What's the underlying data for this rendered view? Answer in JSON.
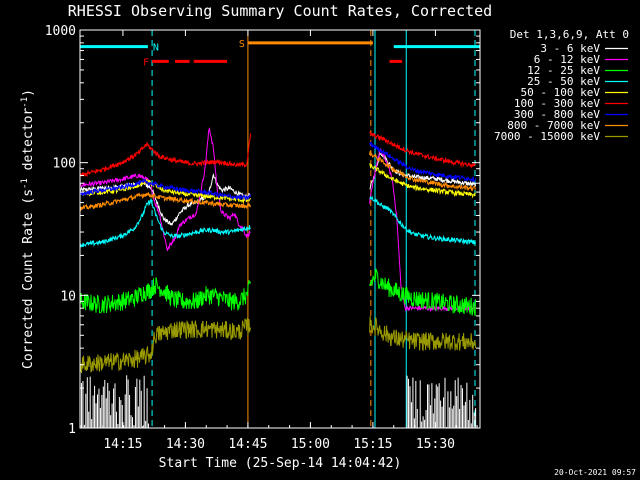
{
  "chart_data": {
    "type": "line",
    "title": "RHESSI Observing Summary Count Rates, Corrected",
    "xlabel": "Start Time (25-Sep-14 14:04:42)",
    "ylabel_main": "Corrected Count Rate (s",
    "ylabel_sup1": "-1",
    "ylabel_mid": " detector",
    "ylabel_sup2": "-1",
    "ylabel_end": ")",
    "ylog": true,
    "ylim": [
      1,
      1000
    ],
    "xlim_minutes": [
      0,
      96
    ],
    "x_ticks": [
      {
        "m": 10.3,
        "label": "14:15"
      },
      {
        "m": 25.3,
        "label": "14:30"
      },
      {
        "m": 40.3,
        "label": "14:45"
      },
      {
        "m": 55.3,
        "label": "15:00"
      },
      {
        "m": 70.3,
        "label": "15:15"
      },
      {
        "m": 85.3,
        "label": "15:30"
      }
    ],
    "y_ticks": [
      {
        "v": 1,
        "label": "1"
      },
      {
        "v": 10,
        "label": "10"
      },
      {
        "v": 100,
        "label": "100"
      },
      {
        "v": 1000,
        "label": "1000"
      }
    ],
    "legend_header": "Det 1,3,6,9, Att 0",
    "legend_position": "right",
    "timestamp": "20-Oct-2021 09:57",
    "flags": [
      {
        "label": "N",
        "color": "#00ffff",
        "segments": [
          [
            0,
            16.3
          ],
          [
            75.3,
            96
          ]
        ],
        "level": 750
      },
      {
        "label": "F",
        "color": "#ff0000",
        "segments": [
          [
            17.3,
            21.3
          ],
          [
            22.8,
            26.3
          ],
          [
            27.3,
            35.3
          ],
          [
            74.3,
            77.3
          ]
        ],
        "level": 580
      },
      {
        "label": "S",
        "color": "#ff8c00",
        "segments": [
          [
            40.3,
            70.3
          ]
        ],
        "level": 800
      }
    ],
    "vlines": [
      {
        "m": 17.3,
        "color": "#00ffff",
        "dashed": true
      },
      {
        "m": 40.3,
        "color": "#ff8c00",
        "dashed": false
      },
      {
        "m": 69.8,
        "color": "#ff8c00",
        "dashed": true
      },
      {
        "m": 70.8,
        "color": "#00ffff",
        "dashed": false
      },
      {
        "m": 78.3,
        "color": "#00ffff",
        "dashed": false
      },
      {
        "m": 94.8,
        "color": "#00ffff",
        "dashed": true
      }
    ],
    "series": [
      {
        "name": "3 - 6 keV",
        "color": "#ffffff",
        "seg1": [
          [
            0,
            62
          ],
          [
            5,
            64
          ],
          [
            10,
            66
          ],
          [
            13,
            68
          ],
          [
            15,
            70
          ],
          [
            17,
            65
          ],
          [
            18,
            55
          ],
          [
            20,
            38
          ],
          [
            22,
            34
          ],
          [
            24,
            42
          ],
          [
            26,
            48
          ],
          [
            28,
            50
          ],
          [
            30,
            55
          ],
          [
            31,
            60
          ],
          [
            32,
            82
          ],
          [
            33,
            68
          ],
          [
            34,
            62
          ],
          [
            36,
            64
          ],
          [
            38,
            58
          ],
          [
            40,
            55
          ],
          [
            41,
            58
          ]
        ],
        "seg2": [
          [
            69.5,
            62
          ],
          [
            71,
            88
          ],
          [
            72,
            120
          ],
          [
            73,
            112
          ],
          [
            75,
            90
          ],
          [
            77,
            82
          ],
          [
            80,
            78
          ],
          [
            85,
            76
          ],
          [
            90,
            72
          ],
          [
            95,
            68
          ]
        ]
      },
      {
        "name": "6 - 12 keV",
        "color": "#ff00ff",
        "seg1": [
          [
            0,
            68
          ],
          [
            5,
            70
          ],
          [
            10,
            75
          ],
          [
            14,
            80
          ],
          [
            16,
            75
          ],
          [
            17,
            68
          ],
          [
            18,
            50
          ],
          [
            19,
            42
          ],
          [
            20,
            30
          ],
          [
            21,
            22
          ],
          [
            22,
            25
          ],
          [
            23,
            28
          ],
          [
            24,
            34
          ],
          [
            26,
            38
          ],
          [
            28,
            42
          ],
          [
            30,
            90
          ],
          [
            31,
            185
          ],
          [
            32,
            130
          ],
          [
            33,
            60
          ],
          [
            34,
            42
          ],
          [
            35,
            40
          ],
          [
            36,
            38
          ],
          [
            37,
            42
          ],
          [
            38,
            35
          ],
          [
            39,
            32
          ],
          [
            40,
            28
          ],
          [
            41,
            30
          ]
        ],
        "seg2": [
          [
            69.5,
            50
          ],
          [
            71,
            92
          ],
          [
            72,
            125
          ],
          [
            73,
            110
          ],
          [
            74,
            95
          ],
          [
            75,
            72
          ],
          [
            76,
            40
          ],
          [
            77,
            12
          ],
          [
            78,
            8
          ],
          [
            80,
            8
          ],
          [
            85,
            8
          ],
          [
            90,
            8
          ],
          [
            95,
            8
          ]
        ]
      },
      {
        "name": "12 - 25 keV",
        "color": "#00ff00",
        "seg1": [
          [
            0,
            9
          ],
          [
            5,
            8.5
          ],
          [
            10,
            9
          ],
          [
            13,
            9.5
          ],
          [
            15,
            10.5
          ],
          [
            17,
            11
          ],
          [
            18,
            12
          ],
          [
            20,
            11
          ],
          [
            22,
            9.5
          ],
          [
            24,
            9
          ],
          [
            26,
            9
          ],
          [
            28,
            9
          ],
          [
            30,
            10
          ],
          [
            32,
            10
          ],
          [
            34,
            9.5
          ],
          [
            36,
            9
          ],
          [
            38,
            9
          ],
          [
            40,
            10
          ],
          [
            41,
            12
          ]
        ],
        "seg2": [
          [
            69.5,
            12
          ],
          [
            71,
            14
          ],
          [
            73,
            12
          ],
          [
            75,
            11
          ],
          [
            78,
            10
          ],
          [
            80,
            9.5
          ],
          [
            85,
            9
          ],
          [
            90,
            8.5
          ],
          [
            95,
            8.2
          ]
        ]
      },
      {
        "name": "25 - 50 keV",
        "color": "#00ffff",
        "seg1": [
          [
            0,
            24
          ],
          [
            5,
            25
          ],
          [
            10,
            28
          ],
          [
            13,
            32
          ],
          [
            15,
            40
          ],
          [
            16,
            48
          ],
          [
            17,
            52
          ],
          [
            18,
            42
          ],
          [
            19,
            35
          ],
          [
            20,
            30
          ],
          [
            22,
            28
          ],
          [
            24,
            28
          ],
          [
            26,
            29
          ],
          [
            28,
            30
          ],
          [
            30,
            31
          ],
          [
            32,
            31
          ],
          [
            34,
            30
          ],
          [
            36,
            30
          ],
          [
            38,
            31
          ],
          [
            40,
            32
          ],
          [
            41,
            33
          ]
        ],
        "seg2": [
          [
            69.5,
            55
          ],
          [
            71,
            52
          ],
          [
            72,
            48
          ],
          [
            74,
            45
          ],
          [
            76,
            38
          ],
          [
            78,
            32
          ],
          [
            80,
            29
          ],
          [
            85,
            27
          ],
          [
            90,
            26
          ],
          [
            95,
            25
          ]
        ]
      },
      {
        "name": "50 - 100 keV",
        "color": "#ffff00",
        "seg1": [
          [
            0,
            58
          ],
          [
            5,
            60
          ],
          [
            10,
            62
          ],
          [
            14,
            68
          ],
          [
            16,
            72
          ],
          [
            17,
            70
          ],
          [
            20,
            62
          ],
          [
            25,
            58
          ],
          [
            30,
            56
          ],
          [
            35,
            54
          ],
          [
            40,
            52
          ],
          [
            41,
            53
          ]
        ],
        "seg2": [
          [
            69.5,
            95
          ],
          [
            71,
            90
          ],
          [
            73,
            82
          ],
          [
            75,
            75
          ],
          [
            78,
            68
          ],
          [
            80,
            65
          ],
          [
            85,
            62
          ],
          [
            90,
            59
          ],
          [
            95,
            57
          ]
        ]
      },
      {
        "name": "100 - 300 keV",
        "color": "#ff0000",
        "seg1": [
          [
            0,
            80
          ],
          [
            5,
            88
          ],
          [
            10,
            100
          ],
          [
            14,
            118
          ],
          [
            16,
            138
          ],
          [
            17,
            128
          ],
          [
            19,
            112
          ],
          [
            22,
            105
          ],
          [
            25,
            100
          ],
          [
            28,
            98
          ],
          [
            30,
            100
          ],
          [
            33,
            102
          ],
          [
            36,
            98
          ],
          [
            38,
            96
          ],
          [
            40,
            97
          ],
          [
            41,
            170
          ]
        ],
        "seg2": [
          [
            69.5,
            165
          ],
          [
            71,
            158
          ],
          [
            73,
            150
          ],
          [
            75,
            138
          ],
          [
            78,
            125
          ],
          [
            80,
            118
          ],
          [
            85,
            108
          ],
          [
            90,
            100
          ],
          [
            95,
            95
          ]
        ]
      },
      {
        "name": "300 - 800 keV",
        "color": "#0000ff",
        "seg1": [
          [
            0,
            58
          ],
          [
            5,
            62
          ],
          [
            10,
            65
          ],
          [
            14,
            70
          ],
          [
            16,
            72
          ],
          [
            17,
            70
          ],
          [
            20,
            66
          ],
          [
            25,
            62
          ],
          [
            30,
            60
          ],
          [
            35,
            56
          ],
          [
            40,
            54
          ],
          [
            41,
            56
          ]
        ],
        "seg2": [
          [
            69.5,
            140
          ],
          [
            71,
            130
          ],
          [
            73,
            120
          ],
          [
            75,
            108
          ],
          [
            78,
            95
          ],
          [
            80,
            88
          ],
          [
            85,
            82
          ],
          [
            90,
            78
          ],
          [
            95,
            75
          ]
        ]
      },
      {
        "name": "800 - 7000 keV",
        "color": "#ff8c00",
        "seg1": [
          [
            0,
            45
          ],
          [
            5,
            48
          ],
          [
            10,
            52
          ],
          [
            14,
            56
          ],
          [
            16,
            58
          ],
          [
            17,
            57
          ],
          [
            20,
            54
          ],
          [
            25,
            52
          ],
          [
            30,
            50
          ],
          [
            35,
            48
          ],
          [
            40,
            47
          ],
          [
            41,
            48
          ]
        ],
        "seg2": [
          [
            69.5,
            118
          ],
          [
            71,
            110
          ],
          [
            73,
            100
          ],
          [
            75,
            90
          ],
          [
            78,
            80
          ],
          [
            80,
            75
          ],
          [
            85,
            70
          ],
          [
            90,
            66
          ],
          [
            95,
            64
          ]
        ]
      },
      {
        "name": "7000 - 15000 keV",
        "color": "#999900",
        "seg1": [
          [
            0,
            3
          ],
          [
            5,
            3.1
          ],
          [
            10,
            3.2
          ],
          [
            13,
            3.3
          ],
          [
            15,
            3.4
          ],
          [
            17,
            3.6
          ],
          [
            18,
            5
          ],
          [
            20,
            5.2
          ],
          [
            22,
            5.5
          ],
          [
            25,
            5.6
          ],
          [
            28,
            5.5
          ],
          [
            30,
            5.6
          ],
          [
            33,
            5.5
          ],
          [
            36,
            5.4
          ],
          [
            38,
            5.3
          ],
          [
            40,
            5.8
          ],
          [
            41,
            6
          ]
        ],
        "seg2": [
          [
            69.5,
            6
          ],
          [
            71,
            5.8
          ],
          [
            73,
            5.2
          ],
          [
            75,
            4.8
          ],
          [
            78,
            4.6
          ],
          [
            80,
            4.5
          ],
          [
            85,
            4.5
          ],
          [
            90,
            4.5
          ],
          [
            95,
            4.4
          ]
        ]
      }
    ]
  }
}
